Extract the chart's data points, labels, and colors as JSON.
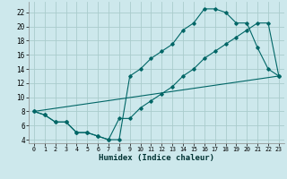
{
  "xlabel": "Humidex (Indice chaleur)",
  "background_color": "#cde8ec",
  "grid_color": "#aacccc",
  "line_color": "#006666",
  "xlim": [
    -0.5,
    23.5
  ],
  "ylim": [
    3.5,
    23.5
  ],
  "xticks": [
    0,
    1,
    2,
    3,
    4,
    5,
    6,
    7,
    8,
    9,
    10,
    11,
    12,
    13,
    14,
    15,
    16,
    17,
    18,
    19,
    20,
    21,
    22,
    23
  ],
  "yticks": [
    4,
    6,
    8,
    10,
    12,
    14,
    16,
    18,
    20,
    22
  ],
  "line1_x": [
    0,
    1,
    2,
    3,
    4,
    5,
    6,
    7,
    8,
    9,
    10,
    11,
    12,
    13,
    14,
    15,
    16,
    17,
    18,
    19,
    20,
    21,
    22,
    23
  ],
  "line1_y": [
    8,
    7.5,
    6.5,
    6.5,
    5.0,
    5.0,
    4.5,
    4.0,
    4.0,
    13.0,
    14.0,
    15.5,
    16.5,
    17.5,
    19.5,
    20.5,
    22.5,
    22.5,
    22.0,
    20.5,
    20.5,
    17.0,
    14.0,
    13.0
  ],
  "line2_x": [
    0,
    1,
    2,
    3,
    4,
    5,
    6,
    7,
    8,
    9,
    10,
    11,
    12,
    13,
    14,
    15,
    16,
    17,
    18,
    19,
    20,
    21,
    22,
    23
  ],
  "line2_y": [
    8,
    7.5,
    6.5,
    6.5,
    5.0,
    5.0,
    4.5,
    4.0,
    7.0,
    7.0,
    8.5,
    9.5,
    10.5,
    11.5,
    13.0,
    14.0,
    15.5,
    16.5,
    17.5,
    18.5,
    19.5,
    20.5,
    20.5,
    13.0
  ],
  "line3_x": [
    0,
    23
  ],
  "line3_y": [
    8,
    13
  ]
}
